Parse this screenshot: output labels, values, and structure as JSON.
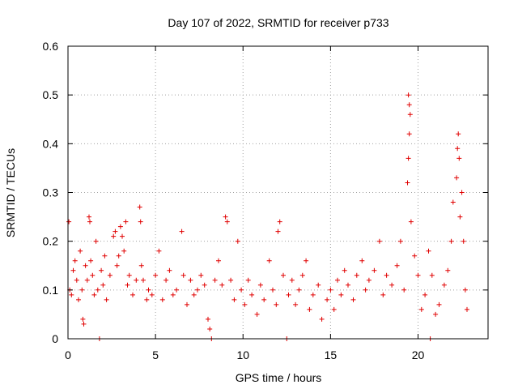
{
  "chart_data": {
    "type": "scatter",
    "title": "Day 107 of 2022, SRMTID for receiver p733",
    "xlabel": "GPS time / hours",
    "ylabel": "SRMTID / TECUs",
    "xlim": [
      0,
      24
    ],
    "ylim": [
      0,
      0.6
    ],
    "xticks": [
      0,
      5,
      10,
      15,
      20
    ],
    "xtick_labels": [
      "0",
      "5",
      "10",
      "15",
      "20"
    ],
    "yticks": [
      0,
      0.1,
      0.2,
      0.3,
      0.4,
      0.5,
      0.6
    ],
    "ytick_labels": [
      "0",
      "0.1",
      "0.2",
      "0.3",
      "0.4",
      "0.5",
      "0.6"
    ],
    "grid": true,
    "marker": "+",
    "color": "#e00000",
    "series": [
      {
        "name": "SRMTID",
        "points": [
          [
            0.05,
            0.24
          ],
          [
            0.1,
            0.1
          ],
          [
            0.2,
            0.09
          ],
          [
            0.3,
            0.14
          ],
          [
            0.4,
            0.16
          ],
          [
            0.5,
            0.12
          ],
          [
            0.6,
            0.08
          ],
          [
            0.7,
            0.18
          ],
          [
            0.8,
            0.1
          ],
          [
            0.85,
            0.04
          ],
          [
            0.9,
            0.03
          ],
          [
            1.0,
            0.15
          ],
          [
            1.1,
            0.12
          ],
          [
            1.2,
            0.25
          ],
          [
            1.25,
            0.24
          ],
          [
            1.3,
            0.16
          ],
          [
            1.4,
            0.13
          ],
          [
            1.5,
            0.09
          ],
          [
            1.6,
            0.2
          ],
          [
            1.7,
            0.1
          ],
          [
            1.8,
            0.0
          ],
          [
            1.9,
            0.14
          ],
          [
            2.0,
            0.11
          ],
          [
            2.1,
            0.17
          ],
          [
            2.2,
            0.08
          ],
          [
            2.4,
            0.13
          ],
          [
            2.6,
            0.21
          ],
          [
            2.7,
            0.22
          ],
          [
            2.8,
            0.15
          ],
          [
            2.9,
            0.17
          ],
          [
            3.0,
            0.23
          ],
          [
            3.1,
            0.21
          ],
          [
            3.2,
            0.18
          ],
          [
            3.3,
            0.24
          ],
          [
            3.4,
            0.11
          ],
          [
            3.5,
            0.13
          ],
          [
            3.7,
            0.09
          ],
          [
            3.9,
            0.12
          ],
          [
            4.1,
            0.27
          ],
          [
            4.15,
            0.24
          ],
          [
            4.2,
            0.15
          ],
          [
            4.3,
            0.12
          ],
          [
            4.5,
            0.08
          ],
          [
            4.6,
            0.1
          ],
          [
            4.8,
            0.09
          ],
          [
            5.0,
            0.13
          ],
          [
            5.2,
            0.18
          ],
          [
            5.4,
            0.08
          ],
          [
            5.6,
            0.12
          ],
          [
            5.8,
            0.14
          ],
          [
            6.0,
            0.09
          ],
          [
            6.2,
            0.1
          ],
          [
            6.5,
            0.22
          ],
          [
            6.6,
            0.13
          ],
          [
            6.8,
            0.07
          ],
          [
            7.0,
            0.12
          ],
          [
            7.2,
            0.09
          ],
          [
            7.4,
            0.1
          ],
          [
            7.6,
            0.13
          ],
          [
            7.8,
            0.11
          ],
          [
            8.0,
            0.04
          ],
          [
            8.1,
            0.02
          ],
          [
            8.2,
            0.0
          ],
          [
            8.4,
            0.12
          ],
          [
            8.6,
            0.16
          ],
          [
            8.8,
            0.11
          ],
          [
            9.0,
            0.25
          ],
          [
            9.1,
            0.24
          ],
          [
            9.3,
            0.12
          ],
          [
            9.5,
            0.08
          ],
          [
            9.7,
            0.2
          ],
          [
            9.9,
            0.1
          ],
          [
            10.1,
            0.07
          ],
          [
            10.3,
            0.12
          ],
          [
            10.5,
            0.09
          ],
          [
            10.8,
            0.05
          ],
          [
            11.0,
            0.11
          ],
          [
            11.2,
            0.08
          ],
          [
            11.5,
            0.16
          ],
          [
            11.7,
            0.1
          ],
          [
            11.9,
            0.07
          ],
          [
            12.0,
            0.22
          ],
          [
            12.1,
            0.24
          ],
          [
            12.3,
            0.13
          ],
          [
            12.5,
            0.0
          ],
          [
            12.6,
            0.09
          ],
          [
            12.8,
            0.12
          ],
          [
            13.0,
            0.07
          ],
          [
            13.2,
            0.1
          ],
          [
            13.4,
            0.13
          ],
          [
            13.6,
            0.16
          ],
          [
            13.8,
            0.06
          ],
          [
            14.0,
            0.09
          ],
          [
            14.3,
            0.11
          ],
          [
            14.5,
            0.04
          ],
          [
            14.8,
            0.08
          ],
          [
            15.0,
            0.1
          ],
          [
            15.2,
            0.06
          ],
          [
            15.4,
            0.12
          ],
          [
            15.6,
            0.09
          ],
          [
            15.8,
            0.14
          ],
          [
            16.0,
            0.11
          ],
          [
            16.3,
            0.08
          ],
          [
            16.5,
            0.13
          ],
          [
            16.8,
            0.16
          ],
          [
            17.0,
            0.1
          ],
          [
            17.2,
            0.12
          ],
          [
            17.5,
            0.14
          ],
          [
            17.8,
            0.2
          ],
          [
            18.0,
            0.09
          ],
          [
            18.2,
            0.13
          ],
          [
            18.5,
            0.11
          ],
          [
            18.8,
            0.15
          ],
          [
            19.0,
            0.2
          ],
          [
            19.2,
            0.1
          ],
          [
            19.4,
            0.32
          ],
          [
            19.45,
            0.37
          ],
          [
            19.5,
            0.42
          ],
          [
            19.55,
            0.46
          ],
          [
            19.5,
            0.48
          ],
          [
            19.45,
            0.5
          ],
          [
            19.6,
            0.24
          ],
          [
            19.8,
            0.17
          ],
          [
            20.0,
            0.13
          ],
          [
            20.2,
            0.06
          ],
          [
            20.4,
            0.09
          ],
          [
            20.6,
            0.18
          ],
          [
            20.7,
            0.0
          ],
          [
            20.8,
            0.13
          ],
          [
            21.0,
            0.05
          ],
          [
            21.2,
            0.07
          ],
          [
            21.5,
            0.11
          ],
          [
            21.7,
            0.14
          ],
          [
            21.9,
            0.2
          ],
          [
            22.0,
            0.28
          ],
          [
            22.2,
            0.33
          ],
          [
            22.25,
            0.39
          ],
          [
            22.3,
            0.42
          ],
          [
            22.35,
            0.37
          ],
          [
            22.4,
            0.25
          ],
          [
            22.5,
            0.3
          ],
          [
            22.6,
            0.2
          ],
          [
            22.7,
            0.1
          ],
          [
            22.8,
            0.06
          ]
        ]
      }
    ]
  }
}
